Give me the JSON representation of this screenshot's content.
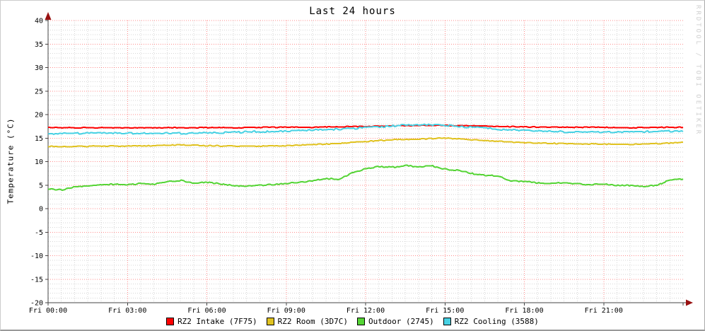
{
  "chart_data": {
    "type": "line",
    "title": "Last 24 hours",
    "ylabel": "Temperature (°C)",
    "watermark": "RRDTOOL / TOBI OETIKER",
    "xlim_hours": [
      0,
      24
    ],
    "ylim": [
      -20,
      40
    ],
    "grid": true,
    "legend_position": "bottom",
    "y_ticks": [
      40,
      35,
      30,
      25,
      20,
      15,
      10,
      5,
      0,
      -5,
      -10,
      -15,
      -20
    ],
    "y_minor_step": 1,
    "x_major_step_h": 3,
    "x_minor_step_h": 0.5,
    "x_ticks": [
      {
        "h": 0,
        "label": "Fri 00:00"
      },
      {
        "h": 3,
        "label": "Fri 03:00"
      },
      {
        "h": 6,
        "label": "Fri 06:00"
      },
      {
        "h": 9,
        "label": "Fri 09:00"
      },
      {
        "h": 12,
        "label": "Fri 12:00"
      },
      {
        "h": 15,
        "label": "Fri 15:00"
      },
      {
        "h": 18,
        "label": "Fri 18:00"
      },
      {
        "h": 21,
        "label": "Fri 21:00"
      }
    ],
    "colors": {
      "background": "#ffffff",
      "major_grid": "#ff0000",
      "minor_grid": "#bbbbbb",
      "axis": "#444444",
      "arrow": "#991111",
      "text": "#000000",
      "watermark": "#cfcfcf"
    },
    "series": [
      {
        "name": "RZ2 Intake (7F75)",
        "color": "#ff0000",
        "x_step_h": 1,
        "noise": 0.07,
        "values": [
          17.2,
          17.2,
          17.2,
          17.2,
          17.2,
          17.2,
          17.2,
          17.2,
          17.3,
          17.3,
          17.3,
          17.4,
          17.5,
          17.6,
          17.7,
          17.7,
          17.6,
          17.5,
          17.4,
          17.3,
          17.3,
          17.3,
          17.2,
          17.3,
          17.3
        ]
      },
      {
        "name": "RZ2 Room (3D7C)",
        "color": "#e0c220",
        "x_step_h": 1,
        "noise": 0.09,
        "values": [
          13.2,
          13.2,
          13.3,
          13.3,
          13.4,
          13.6,
          13.4,
          13.3,
          13.3,
          13.4,
          13.6,
          13.9,
          14.3,
          14.6,
          14.8,
          15.0,
          14.7,
          14.3,
          14.0,
          13.9,
          13.8,
          13.7,
          13.7,
          13.8,
          14.1
        ]
      },
      {
        "name": "Outdoor (2745)",
        "color": "#55d435",
        "x_step_h": 0.5,
        "noise": 0.12,
        "values": [
          4.2,
          4.0,
          4.6,
          4.9,
          5.0,
          5.2,
          5.1,
          5.3,
          5.2,
          5.8,
          6.0,
          5.4,
          5.6,
          5.3,
          4.9,
          4.8,
          5.0,
          5.1,
          5.3,
          5.6,
          5.9,
          6.4,
          6.3,
          7.6,
          8.4,
          9.0,
          8.8,
          9.2,
          8.8,
          9.1,
          8.4,
          8.2,
          7.5,
          7.1,
          7.0,
          5.9,
          5.8,
          5.5,
          5.4,
          5.5,
          5.3,
          5.1,
          5.2,
          5.0,
          4.9,
          4.8,
          4.9,
          6.1,
          6.3
        ]
      },
      {
        "name": "RZ2 Cooling (3588)",
        "color": "#47d1e3",
        "x_step_h": 1,
        "noise": 0.16,
        "values": [
          15.9,
          16.0,
          16.1,
          16.0,
          16.1,
          16.0,
          16.1,
          16.2,
          16.4,
          16.5,
          16.7,
          16.9,
          17.2,
          17.6,
          17.9,
          17.7,
          17.3,
          16.9,
          16.6,
          16.4,
          16.3,
          16.3,
          16.3,
          16.4,
          16.5
        ]
      }
    ]
  }
}
